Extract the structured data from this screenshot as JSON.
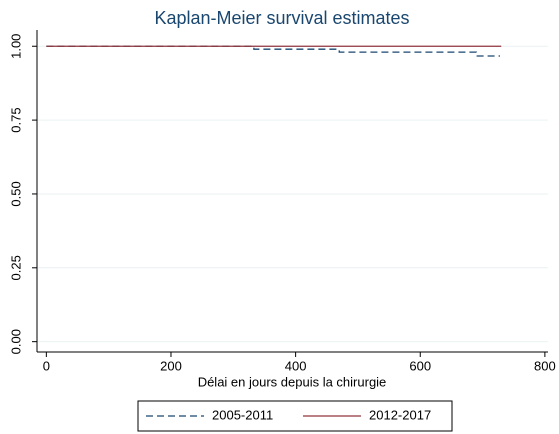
{
  "chart_data": {
    "type": "step",
    "title": "Kaplan-Meier survival estimates",
    "x_label": "Délai en jours depuis la chirurgie",
    "xlim": [
      -15,
      805
    ],
    "xticks": [
      0,
      200,
      400,
      600,
      800
    ],
    "ylim": [
      -0.035,
      1.055
    ],
    "yticks": [
      {
        "value": 0,
        "label": "0.00"
      },
      {
        "value": 0.25,
        "label": "0.25"
      },
      {
        "value": 0.5,
        "label": "0.50"
      },
      {
        "value": 0.75,
        "label": "0.75"
      },
      {
        "value": 1,
        "label": "1.00"
      }
    ],
    "grid": true,
    "legend": "bottom",
    "series": [
      {
        "name": "2005-2011",
        "color": "#1a476f",
        "dash": true,
        "x": [
          0,
          333,
          470,
          690,
          728
        ],
        "values": [
          1,
          0.99,
          0.98,
          0.967,
          0.967
        ]
      },
      {
        "name": "2012-2017",
        "color": "#90353b",
        "dash": false,
        "x": [
          0,
          730
        ],
        "values": [
          1,
          1
        ]
      }
    ]
  }
}
